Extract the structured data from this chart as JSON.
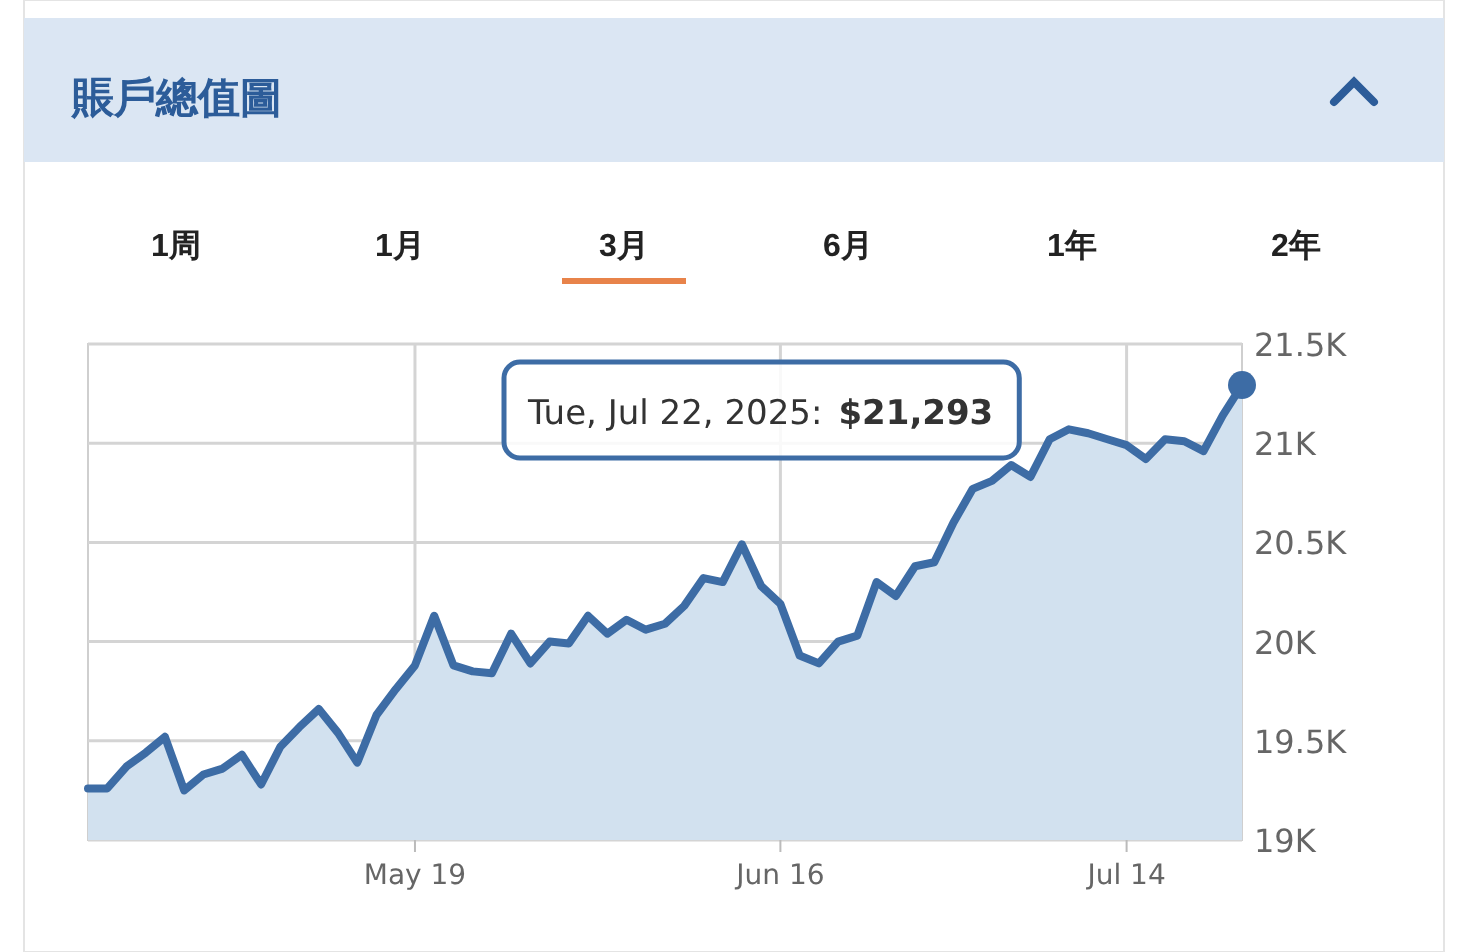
{
  "chart_data": {
    "type": "area",
    "title": "賬戶總值圖",
    "categories": [
      null,
      null,
      null,
      null,
      null,
      null,
      null,
      null,
      null,
      null,
      null,
      null,
      null,
      null,
      null,
      null,
      null,
      "May 19",
      null,
      null,
      null,
      null,
      null,
      null,
      null,
      null,
      null,
      null,
      null,
      null,
      null,
      null,
      null,
      null,
      null,
      null,
      "Jun 16",
      null,
      null,
      null,
      null,
      null,
      null,
      null,
      null,
      null,
      null,
      null,
      null,
      null,
      null,
      null,
      null,
      null,
      "Jul 14",
      null,
      null,
      null,
      null,
      null,
      null
    ],
    "series": [
      {
        "color": "#3d6ca5",
        "values": [
          19260,
          19260,
          19370,
          19440,
          19520,
          19250,
          19330,
          19360,
          19430,
          19280,
          19470,
          19570,
          19660,
          19540,
          19390,
          19630,
          19760,
          19880,
          20130,
          19880,
          19850,
          19840,
          20040,
          19890,
          20000,
          19990,
          20130,
          20040,
          20110,
          20060,
          20090,
          20180,
          20320,
          20300,
          20490,
          20280,
          20190,
          19930,
          19890,
          20000,
          20030,
          20300,
          20230,
          20380,
          20400,
          20600,
          20770,
          20810,
          20890,
          20830,
          21020,
          21070,
          21050,
          21020,
          20990,
          20920,
          21020,
          21010,
          20960,
          21140,
          21293
        ]
      }
    ],
    "ylim": [
      19000,
      21500
    ],
    "yticks": [
      {
        "value": 19000,
        "label": "19K"
      },
      {
        "value": 19500,
        "label": "19.5K"
      },
      {
        "value": 20000,
        "label": "20K"
      },
      {
        "value": 20500,
        "label": "20.5K"
      },
      {
        "value": 21000,
        "label": "21K"
      },
      {
        "value": 21500,
        "label": "21.5K"
      }
    ],
    "grid": true,
    "annotations": [
      "1周",
      "1月",
      "3月",
      "6月",
      "1年",
      "2年",
      "Tue, Jul 22, 2025:  $21,293"
    ]
  }
}
